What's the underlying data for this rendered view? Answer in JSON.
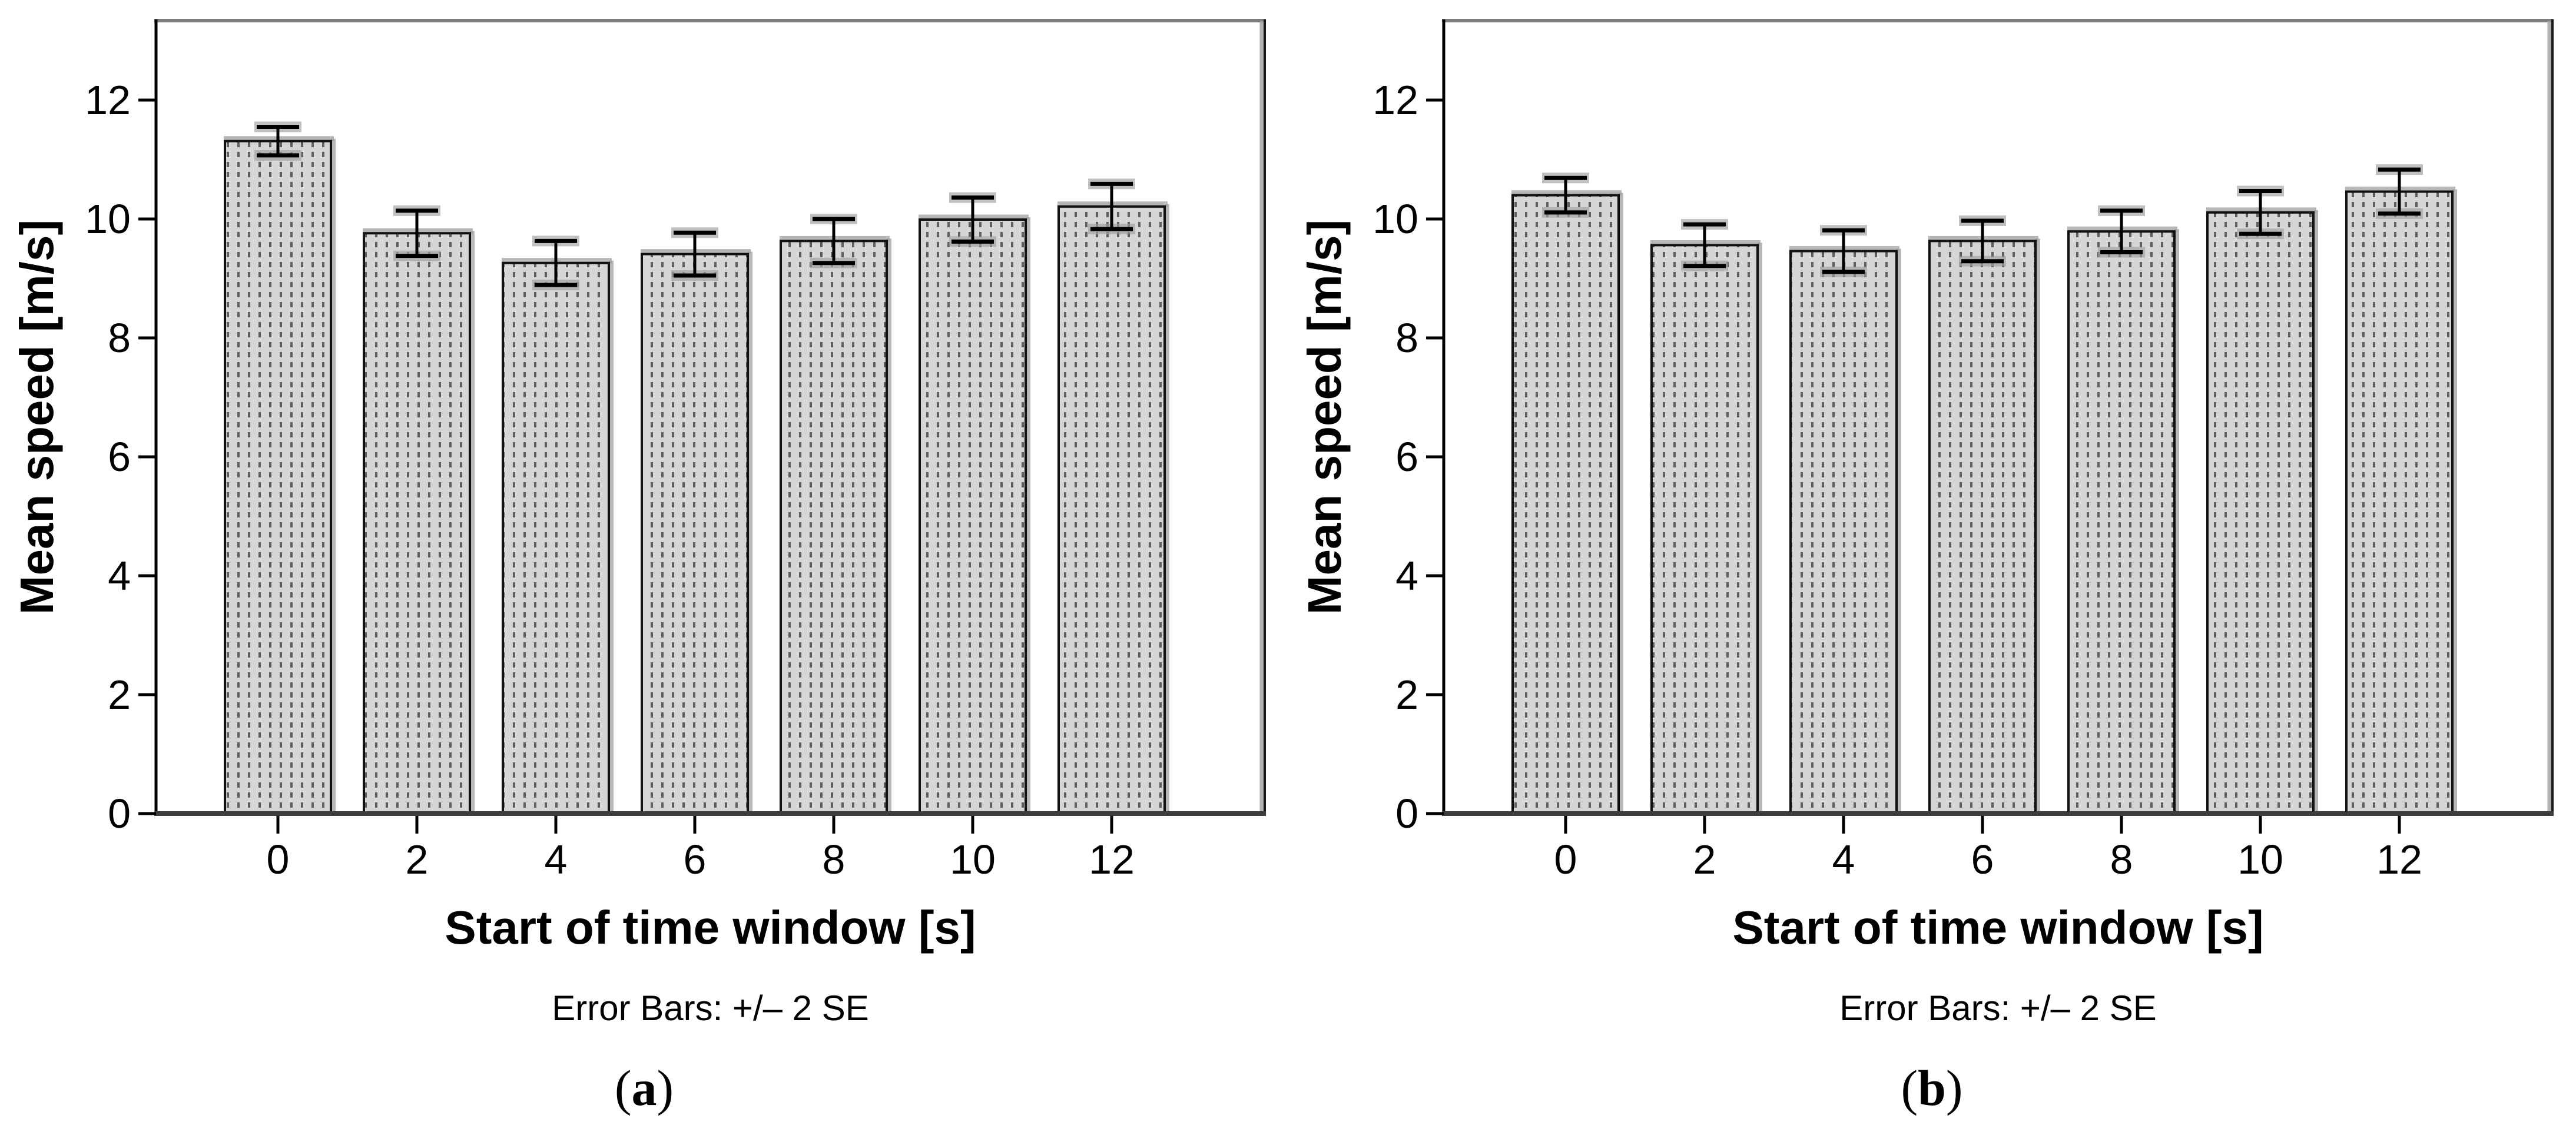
{
  "figure": {
    "background": "#ffffff",
    "bar_fill": "#d6d6d6",
    "bar_pattern_line": "#5f5f5f",
    "bar_stroke": "#111111",
    "halo_color": "#9f9f9f",
    "axis_left_color": "#000000",
    "axis_bottom_color": "#3c3c3c",
    "frame_top_color": "#7d7d7d",
    "frame_right_color": "#1a1a1a",
    "text_color": "#000000"
  },
  "chart_data": [
    {
      "id": "a",
      "type": "bar",
      "panel_label": "(a)",
      "panel_letter": "a",
      "paren_open": "(",
      "paren_close": ")",
      "xlabel": "Start of time window [s]",
      "ylabel": "Mean speed [m/s]",
      "caption": "Error Bars: +/– 2 SE",
      "categories": [
        "0",
        "2",
        "4",
        "6",
        "8",
        "10",
        "12"
      ],
      "values": [
        11.31,
        9.76,
        9.26,
        9.41,
        9.63,
        9.99,
        10.21
      ],
      "error_2se": [
        0.24,
        0.38,
        0.37,
        0.36,
        0.37,
        0.37,
        0.38
      ],
      "yticks": [
        0,
        2,
        4,
        6,
        8,
        10,
        12
      ],
      "ylim": [
        0,
        13.3
      ],
      "grid": "off",
      "legend": "none"
    },
    {
      "id": "b",
      "type": "bar",
      "panel_label": "(b)",
      "panel_letter": "b",
      "paren_open": "(",
      "paren_close": ")",
      "xlabel": "Start of time window [s]",
      "ylabel": "Mean speed [m/s]",
      "caption": "Error Bars: +/– 2 SE",
      "categories": [
        "0",
        "2",
        "4",
        "6",
        "8",
        "10",
        "12"
      ],
      "values": [
        10.4,
        9.56,
        9.46,
        9.63,
        9.79,
        10.11,
        10.46
      ],
      "error_2se": [
        0.29,
        0.35,
        0.35,
        0.34,
        0.35,
        0.36,
        0.37
      ],
      "yticks": [
        0,
        2,
        4,
        6,
        8,
        10,
        12
      ],
      "ylim": [
        0,
        13.3
      ],
      "grid": "off",
      "legend": "none"
    }
  ]
}
